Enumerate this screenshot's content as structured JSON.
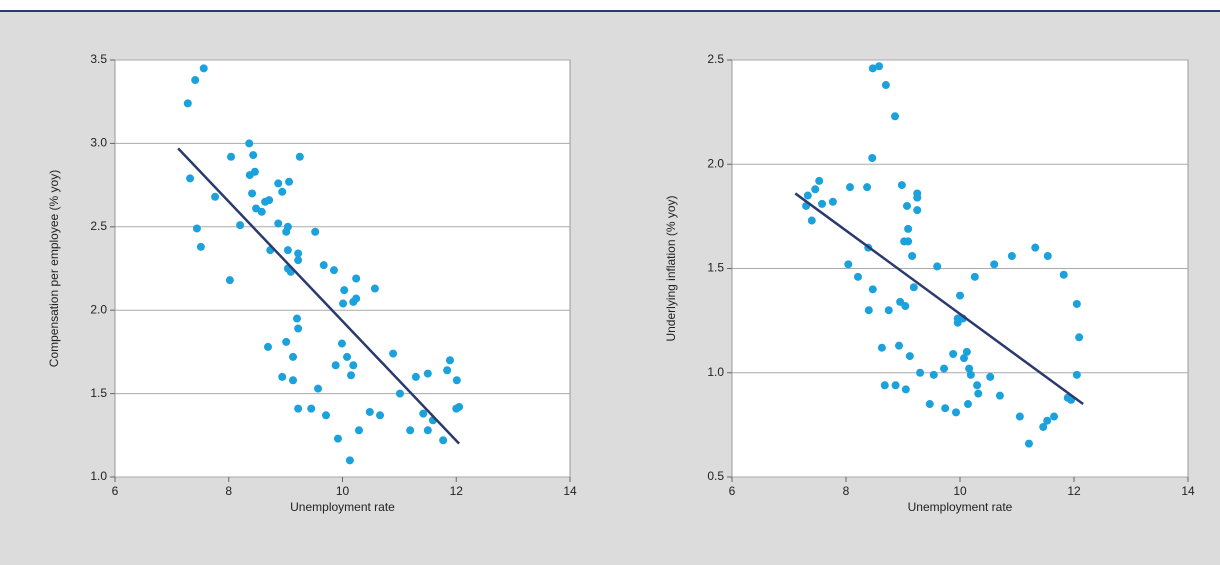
{
  "chart_data": [
    {
      "type": "scatter",
      "xlabel": "Unemployment rate",
      "ylabel": "Compensation per employee (% yoy)",
      "color": "#1ba1db",
      "grid": true,
      "xlim": [
        6,
        14
      ],
      "xticks": [
        6,
        8,
        10,
        12,
        14
      ],
      "ylim": [
        1,
        3.5
      ],
      "yticks": [
        {
          "value": 1,
          "label": "1.0"
        },
        1.5,
        {
          "value": 2,
          "label": "2.0"
        },
        2.5,
        {
          "value": 3,
          "label": "3.0"
        },
        3.5
      ],
      "x": [
        7.28,
        7.41,
        7.56,
        7.32,
        7.44,
        7.51,
        7.76,
        8.04,
        8.02,
        8.2,
        8.36,
        8.43,
        8.37,
        8.46,
        8.41,
        8.48,
        8.58,
        8.64,
        8.71,
        8.73,
        8.87,
        8.87,
        8.94,
        9.06,
        9.04,
        9.01,
        9.04,
        9.04,
        9.09,
        9.25,
        9.22,
        9.22,
        9.52,
        8.69,
        9.01,
        9.2,
        9.22,
        9.13,
        8.94,
        9.13,
        9.22,
        9.45,
        9.57,
        9.71,
        9.67,
        9.85,
        10.03,
        10.01,
        10.24,
        10.19,
        10.24,
        10.57,
        9.99,
        10.08,
        10.19,
        10.15,
        9.88,
        9.92,
        10.13,
        10.29,
        10.48,
        10.66,
        10.89,
        11.01,
        11.19,
        11.29,
        11.42,
        11.5,
        11.5,
        11.59,
        11.77,
        11.84,
        11.89,
        12.01,
        12.05,
        12.0
      ],
      "y": [
        3.24,
        3.38,
        3.45,
        2.79,
        2.49,
        2.38,
        2.68,
        2.92,
        2.18,
        2.51,
        3.0,
        2.93,
        2.81,
        2.83,
        2.7,
        2.61,
        2.59,
        2.65,
        2.66,
        2.36,
        2.76,
        2.52,
        2.71,
        2.77,
        2.5,
        2.47,
        2.36,
        2.25,
        2.23,
        2.92,
        2.34,
        2.3,
        2.47,
        1.78,
        1.81,
        1.95,
        1.89,
        1.72,
        1.6,
        1.58,
        1.41,
        1.41,
        1.53,
        1.37,
        2.27,
        2.24,
        2.12,
        2.04,
        2.19,
        2.05,
        2.07,
        2.13,
        1.8,
        1.72,
        1.67,
        1.61,
        1.67,
        1.23,
        1.1,
        1.28,
        1.39,
        1.37,
        1.74,
        1.5,
        1.28,
        1.6,
        1.38,
        1.62,
        1.28,
        1.34,
        1.22,
        1.64,
        1.7,
        1.58,
        1.42,
        1.41
      ],
      "trendline": {
        "color": "#2b3a6e",
        "x": [
          7.11,
          12.05
        ],
        "y": [
          2.97,
          1.2
        ]
      }
    },
    {
      "type": "scatter",
      "xlabel": "Unemployment rate",
      "ylabel": "Underlying inflation (% yoy)",
      "color": "#1ba1db",
      "grid": true,
      "xlim": [
        6,
        14
      ],
      "xticks": [
        6,
        8,
        10,
        12,
        14
      ],
      "ylim": [
        0.5,
        2.5
      ],
      "yticks": [
        0.5,
        {
          "value": 1,
          "label": "1.0"
        },
        1.5,
        {
          "value": 2,
          "label": "2.0"
        },
        2.5
      ],
      "x": [
        7.33,
        7.3,
        7.4,
        7.46,
        7.53,
        7.58,
        7.77,
        8.07,
        8.04,
        8.21,
        8.37,
        8.39,
        8.46,
        8.47,
        8.58,
        8.7,
        8.86,
        8.47,
        8.4,
        8.75,
        8.63,
        8.68,
        8.87,
        8.93,
        8.98,
        8.95,
        9.02,
        9.09,
        9.07,
        9.09,
        9.04,
        9.05,
        9.12,
        9.19,
        9.16,
        9.25,
        9.25,
        9.25,
        9.3,
        9.47,
        9.54,
        9.6,
        9.74,
        9.72,
        9.93,
        9.88,
        9.96,
        9.96,
        10.0,
        10.05,
        10.07,
        10.12,
        10.16,
        10.14,
        10.19,
        10.26,
        10.3,
        10.32,
        10.53,
        10.6,
        10.7,
        10.91,
        11.05,
        11.21,
        11.32,
        11.46,
        11.53,
        11.54,
        11.65,
        11.82,
        11.89,
        11.95,
        12.05,
        12.05,
        12.09
      ],
      "y": [
        1.85,
        1.8,
        1.73,
        1.88,
        1.92,
        1.81,
        1.82,
        1.89,
        1.52,
        1.46,
        1.89,
        1.6,
        2.03,
        2.46,
        2.47,
        2.38,
        2.23,
        1.4,
        1.3,
        1.3,
        1.12,
        0.94,
        0.94,
        1.13,
        1.9,
        1.34,
        1.63,
        1.63,
        1.8,
        1.69,
        1.32,
        0.92,
        1.08,
        1.41,
        1.56,
        1.86,
        1.84,
        1.78,
        1.0,
        0.85,
        0.99,
        1.51,
        0.83,
        1.02,
        0.81,
        1.09,
        1.26,
        1.24,
        1.37,
        1.26,
        1.07,
        1.1,
        1.02,
        0.85,
        0.99,
        1.46,
        0.94,
        0.9,
        0.98,
        1.52,
        0.89,
        1.56,
        0.79,
        0.66,
        1.6,
        0.74,
        0.77,
        1.56,
        0.79,
        1.47,
        0.88,
        0.87,
        1.33,
        0.99,
        1.17
      ],
      "trendline": {
        "color": "#2b3a6e",
        "x": [
          7.11,
          12.16
        ],
        "y": [
          1.86,
          0.85
        ]
      }
    }
  ]
}
